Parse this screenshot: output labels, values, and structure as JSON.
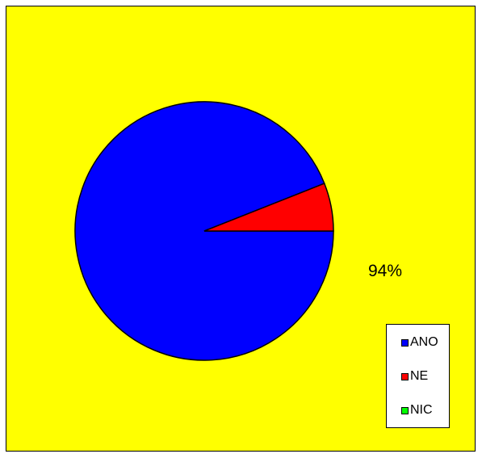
{
  "chart_data": {
    "type": "pie",
    "categories": [
      "ANO",
      "NE",
      "NIC"
    ],
    "values": [
      94,
      6,
      0
    ],
    "data_labels": [
      "94%"
    ],
    "colors": [
      "#0000ff",
      "#ff0000",
      "#00ff00"
    ],
    "background_color": "#ffff00",
    "legend_position": "bottom-right"
  }
}
